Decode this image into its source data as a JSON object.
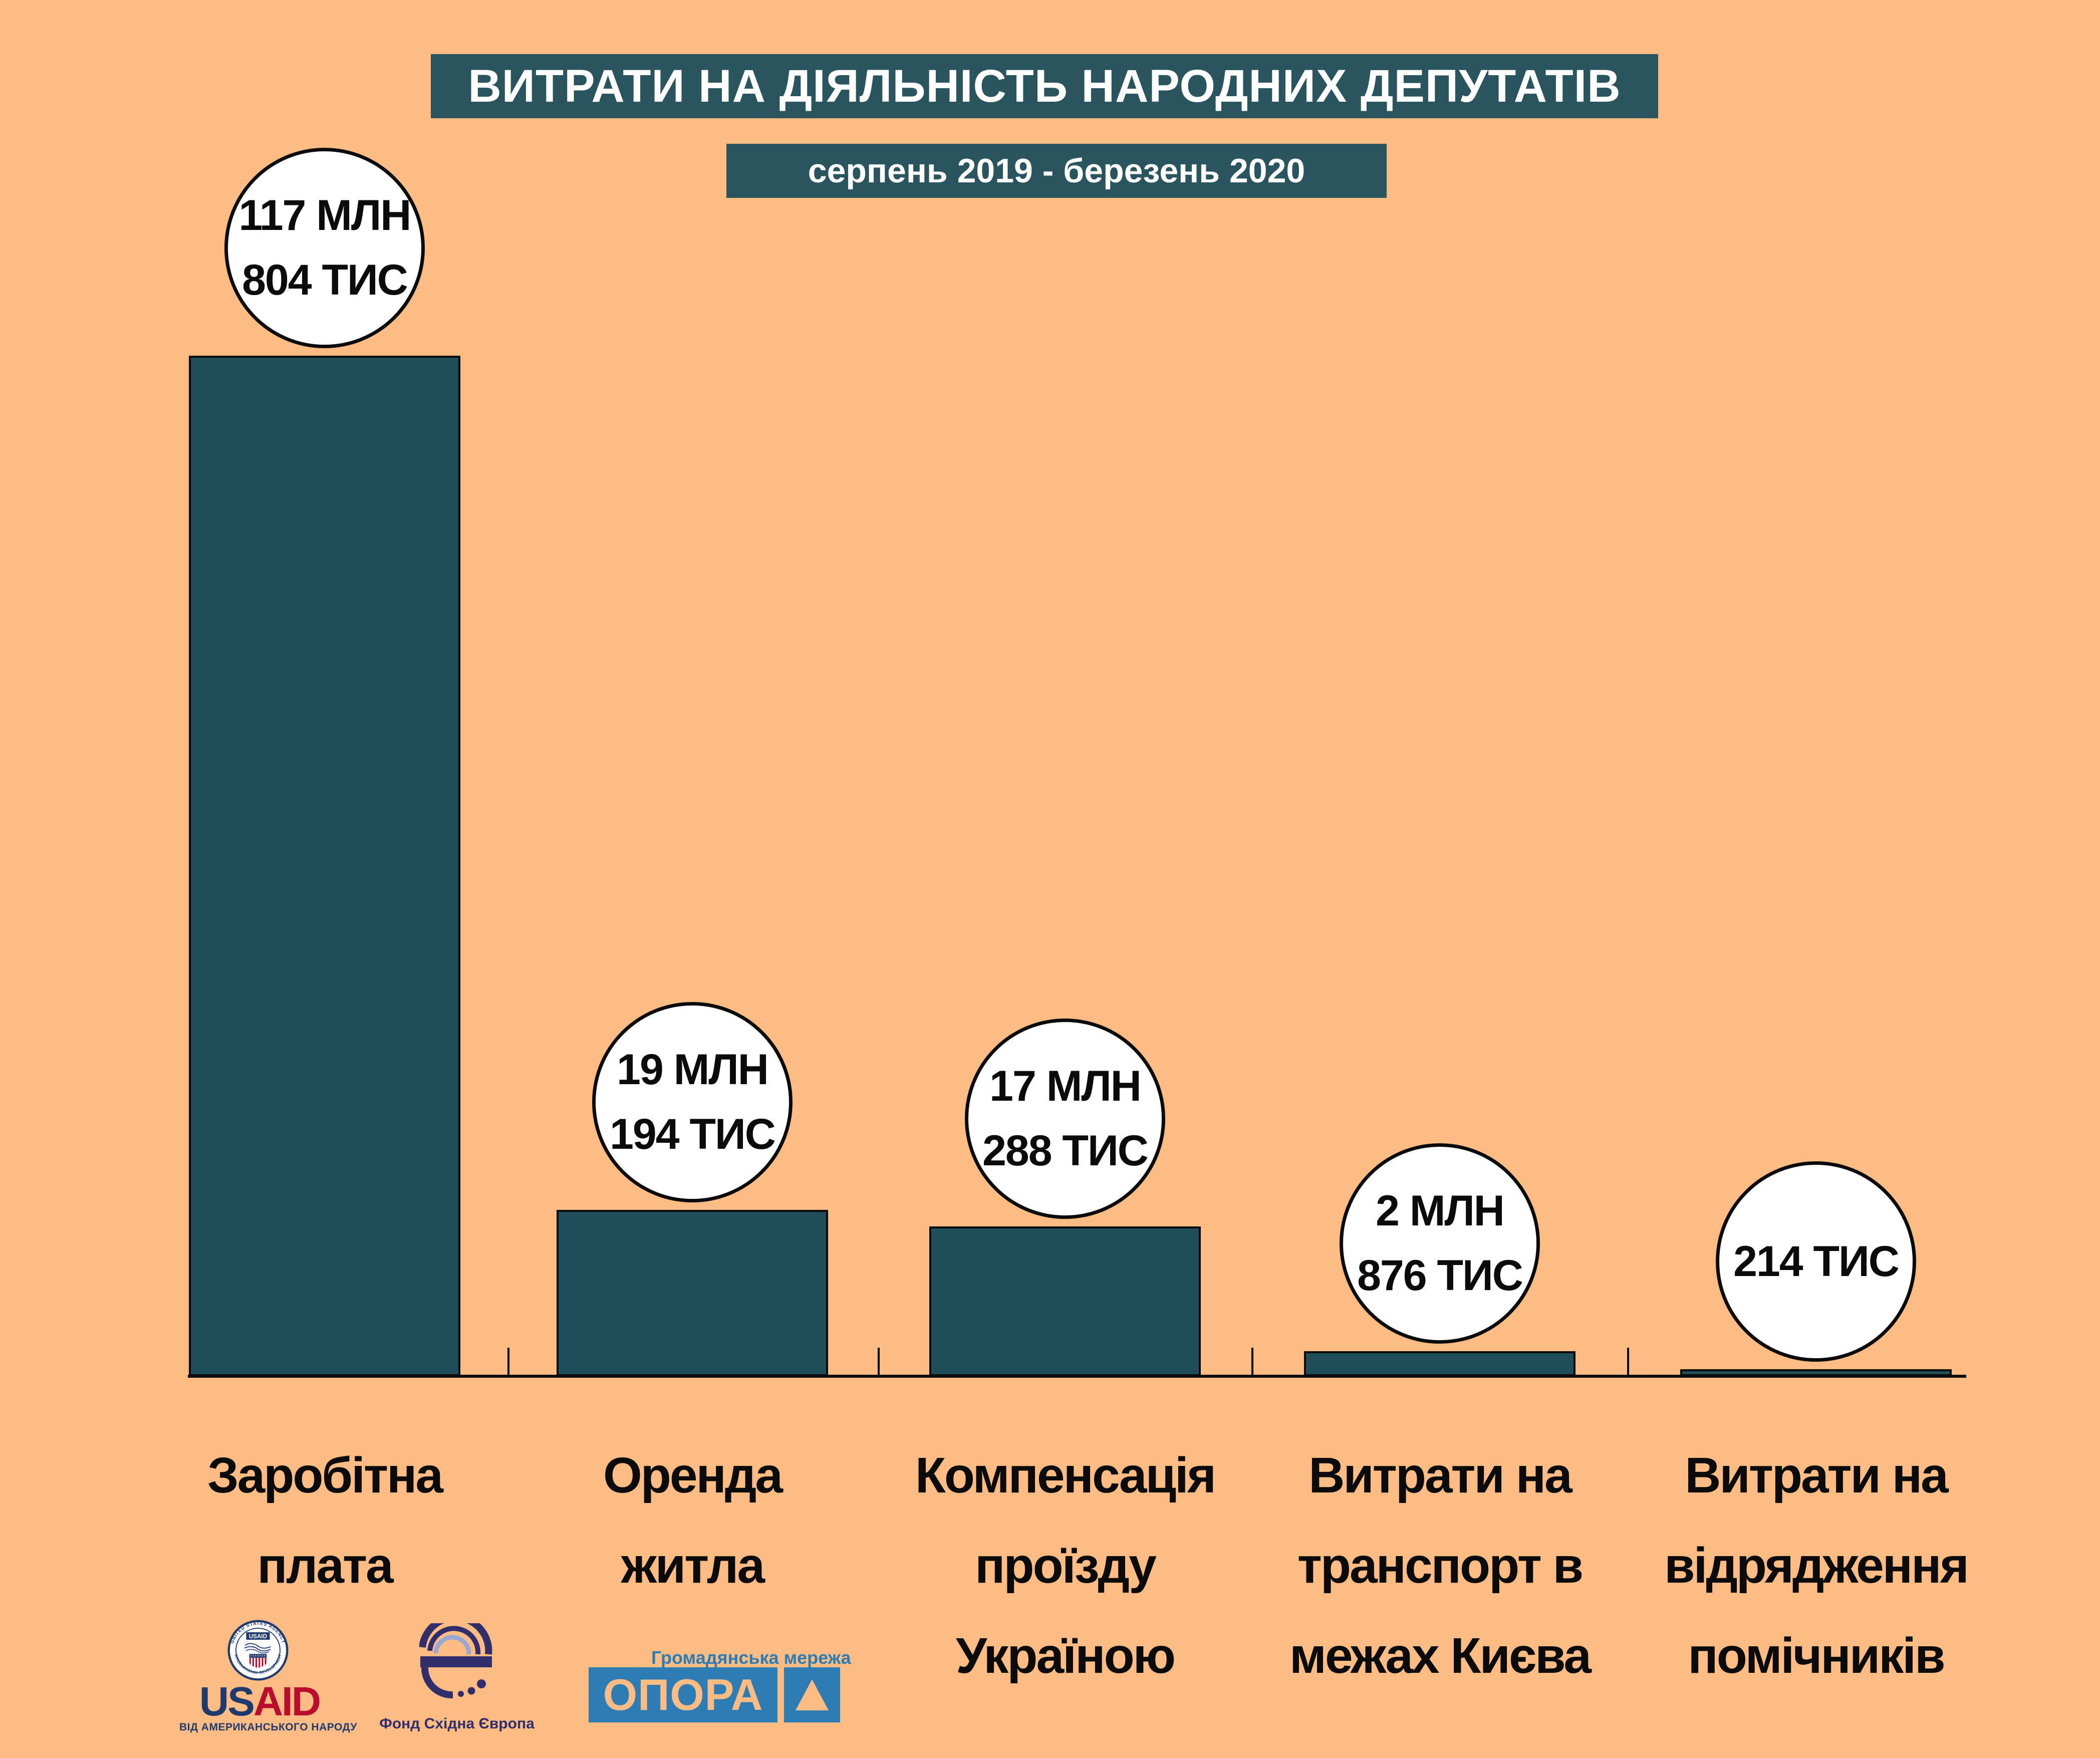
{
  "title": {
    "text": "ВИТРАТИ НА ДІЯЛЬНІСТЬ НАРОДНИХ ДЕПУТАТІВ"
  },
  "subtitle": {
    "text": "серпень 2019 - березень 2020"
  },
  "chart_data": {
    "type": "bar",
    "title": "ВИТРАТИ НА ДІЯЛЬНІСТЬ НАРОДНИХ ДЕПУТАТІВ",
    "subtitle": "серпень 2019 - березень 2020",
    "categories": [
      "Заробітна плата",
      "Оренда житла",
      "Компенсація проїзду Україною",
      "Витрати на транспорт в межах Києва",
      "Витрати на відрядження помічників"
    ],
    "category_lines": [
      [
        "Заробітна",
        "плата"
      ],
      [
        "Оренда",
        "житла"
      ],
      [
        "Компенсація",
        "проїзду",
        "Україною"
      ],
      [
        "Витрати на",
        "транспорт в",
        "межах Києва"
      ],
      [
        "Витрати на",
        "відрядження",
        "помічників"
      ]
    ],
    "values": [
      117804000,
      19194000,
      17288000,
      2876000,
      214000
    ],
    "value_labels": [
      [
        "117 МЛН",
        "804 ТИС"
      ],
      [
        "19 МЛН",
        "194 ТИС"
      ],
      [
        "17 МЛН",
        "288 ТИС"
      ],
      [
        "2 МЛН",
        "876 ТИС"
      ],
      [
        "214 ТИС"
      ]
    ],
    "ylim": [
      0,
      117804000
    ],
    "grid": false,
    "legend": false
  },
  "colors": {
    "background": "#FCBC84",
    "banner": "#2A545E",
    "bar": "#1F4D5A",
    "axis": "#0B0B0B",
    "circle_fill": "#FFFFFF",
    "circle_border": "#0B0B0B",
    "opora_blue": "#2E7CB4",
    "usaid_navy": "#1F3A6E",
    "usaid_red": "#BA0C2F",
    "eef_navy": "#312E6B",
    "eef_light": "#9BA7D3"
  },
  "footer": {
    "usaid": {
      "seal_top": "UNITED STATES AGENCY",
      "seal_bottom": "INTERNATIONAL DEVELOPMENT",
      "seal_word": "USAID",
      "word_us": "US",
      "word_aid": "AID",
      "tagline": "ВІД АМЕРИКАНСЬКОГО НАРОДУ"
    },
    "eef": {
      "name": "Фонд Східна Європа"
    },
    "opora": {
      "network": "Громадянська мережа",
      "wordmark": "ОПОРА"
    }
  }
}
